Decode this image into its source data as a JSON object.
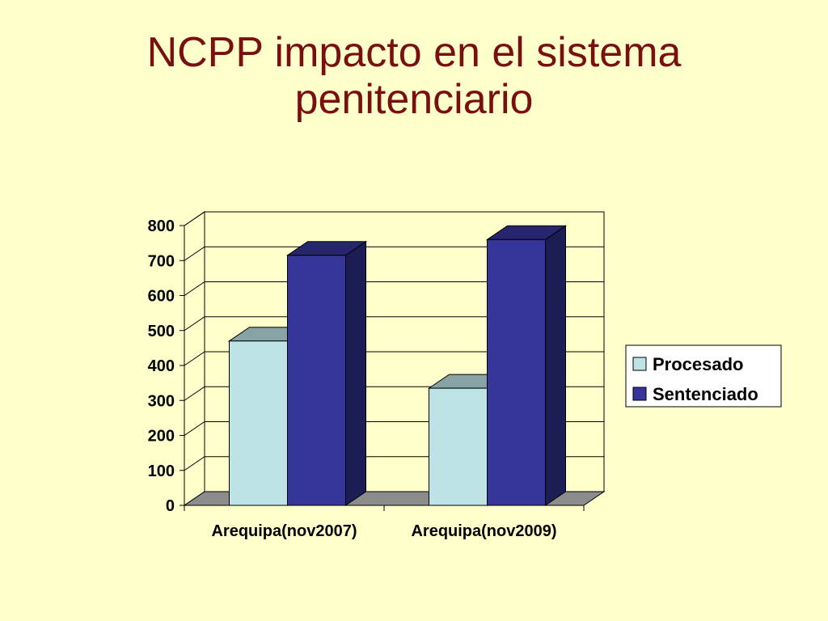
{
  "slide": {
    "title_line1": "NCPP impacto en el sistema",
    "title_line2": "penitenciario"
  },
  "chart_data": {
    "type": "bar",
    "three_d": true,
    "categories": [
      "Arequipa(nov2007)",
      "Arequipa(nov2009)"
    ],
    "series": [
      {
        "name": "Procesado",
        "values": [
          470,
          335
        ],
        "color": "#BDE3E6"
      },
      {
        "name": "Sentenciado",
        "values": [
          715,
          760
        ],
        "color": "#35359A"
      }
    ],
    "ylim": [
      0,
      800
    ],
    "yticks": [
      0,
      100,
      200,
      300,
      400,
      500,
      600,
      700,
      800
    ],
    "grid": true,
    "legend": "right",
    "title": "",
    "xlabel": "",
    "ylabel": ""
  }
}
